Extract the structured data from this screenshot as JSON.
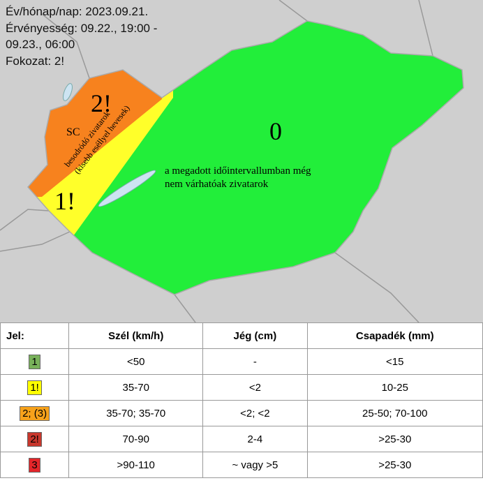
{
  "header": {
    "lines": [
      "Év/hónap/nap: 2023.09.21.",
      "Érvényesség: 09.22., 19:00 -",
      "09.23., 06:00",
      "Fokozat: 2!"
    ]
  },
  "map": {
    "labels": {
      "orange_level": "2!",
      "orange_code": "SC",
      "yellow_level": "1!",
      "green_level": "0",
      "band_line1": "besodródó zivatarok",
      "band_line2": "(kisebb eséllyel hevesek)",
      "green_note_line1": "a megadott időintervallumban még",
      "green_note_line2": "nem várhatóak zivatarok"
    }
  },
  "table": {
    "header": [
      "Jel:",
      "Szél (km/h)",
      "Jég (cm)",
      "Csapadék (mm)"
    ],
    "rows": [
      [
        "1",
        "<50",
        "-",
        "<15"
      ],
      [
        "1!",
        "35-70",
        "<2",
        "10-25"
      ],
      [
        "2; (3)",
        "35-70; 35-70",
        "<2; <2",
        "25-50; 70-100"
      ],
      [
        "2!",
        "70-90",
        "2-4",
        ">25-30"
      ],
      [
        "3",
        ">90-110",
        "~ vagy >5",
        ">25-30"
      ]
    ],
    "badge_colors": [
      "#78b15a",
      "#ffff00",
      "#f7a21b",
      "#c8372d",
      "#e3262a"
    ]
  }
}
